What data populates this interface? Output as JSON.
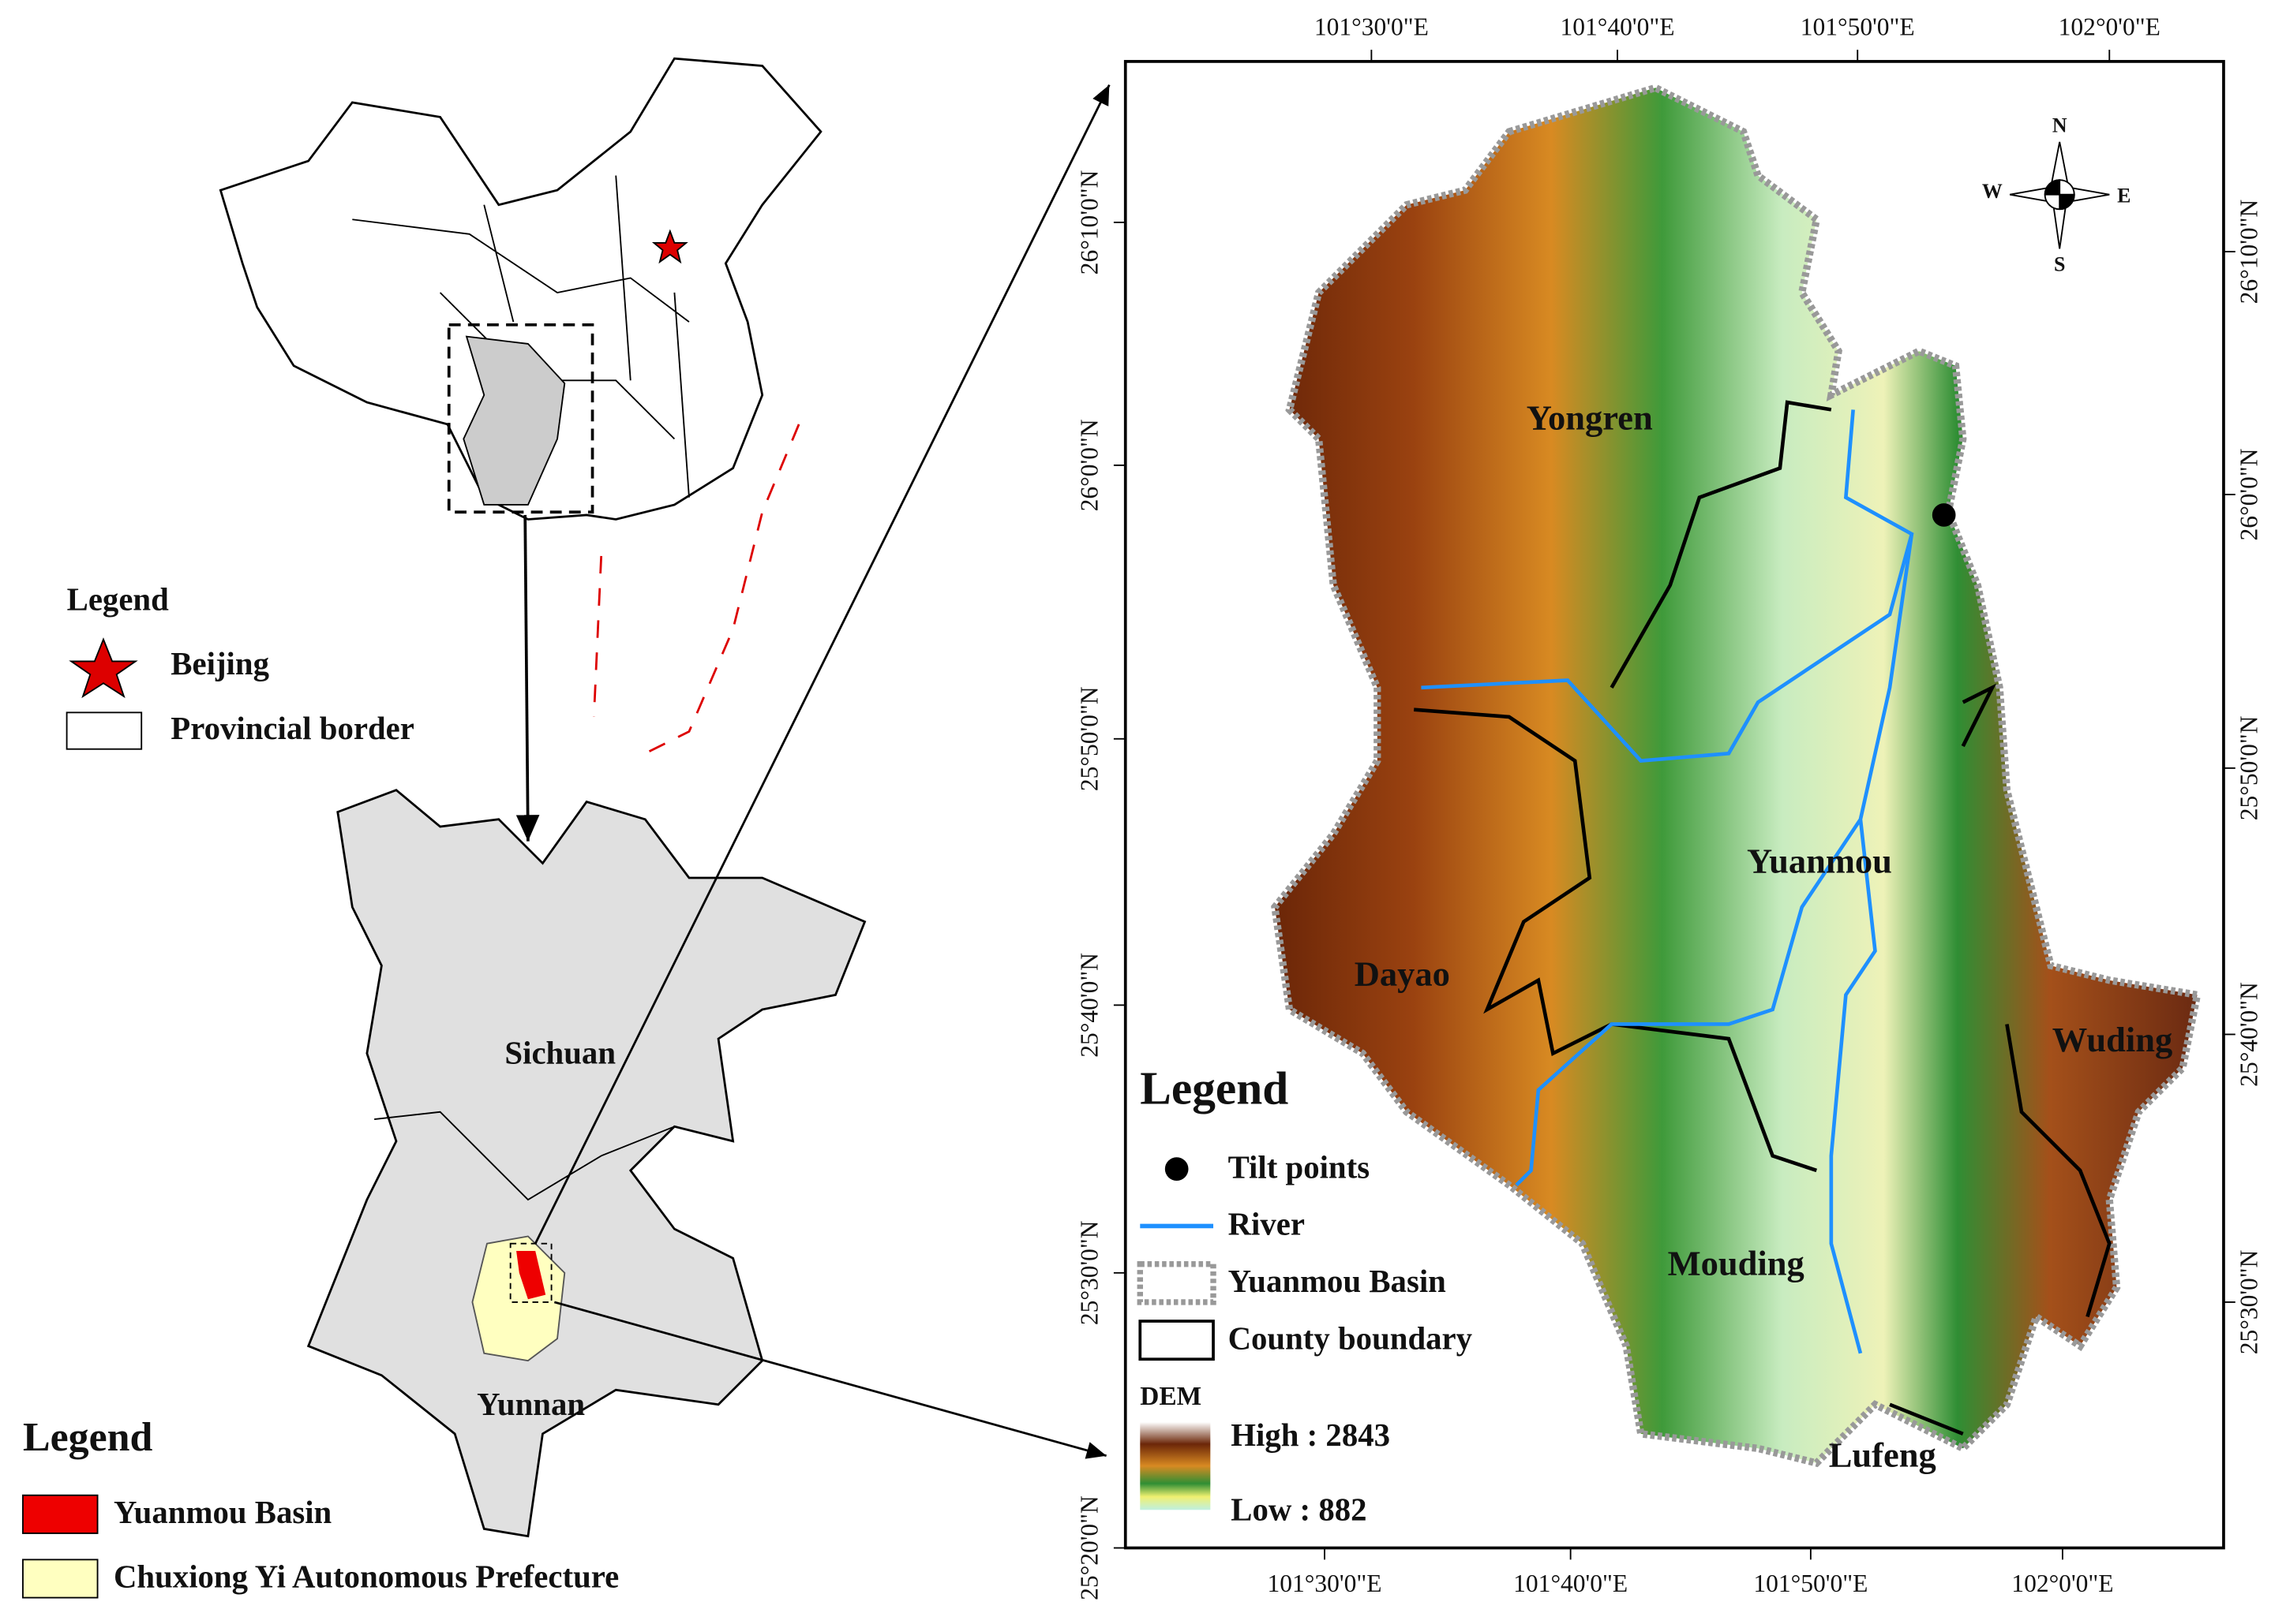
{
  "overview_map": {
    "legend_title": "Legend",
    "legend": [
      "Beijing",
      "Provincial border"
    ]
  },
  "province_map": {
    "labels": [
      "Sichuan",
      "Yunnan"
    ],
    "legend_title": "Legend",
    "legend": [
      "Yuanmou Basin",
      "Chuxiong Yi Autonomous Prefecture"
    ]
  },
  "dem_map": {
    "top_ticks": [
      "101°30'0\"E",
      "101°40'0\"E",
      "101°50'0\"E",
      "102°0'0\"E"
    ],
    "bottom_ticks": [
      "101°30'0\"E",
      "101°40'0\"E",
      "101°50'0\"E",
      "102°0'0\"E"
    ],
    "left_ticks": [
      "26°10'0\"N",
      "26°0'0\"N",
      "25°50'0\"N",
      "25°40'0\"N",
      "25°30'0\"N",
      "25°20'0\"N"
    ],
    "right_ticks": [
      "26°10'0\"N",
      "26°0'0\"N",
      "25°50'0\"N",
      "25°40'0\"N",
      "25°30'0\"N"
    ],
    "compass": [
      "N",
      "S",
      "W",
      "E"
    ],
    "place_labels": [
      "Yongren",
      "Yuanmou",
      "Dayao",
      "Wuding",
      "Mouding",
      "Lufeng"
    ],
    "legend": {
      "title": "Legend",
      "items": [
        "Tilt points",
        "River",
        "Yuanmou Basin",
        "County boundary"
      ],
      "dem_title": "DEM",
      "high": "High : 2843",
      "low": "Low : 882"
    }
  }
}
